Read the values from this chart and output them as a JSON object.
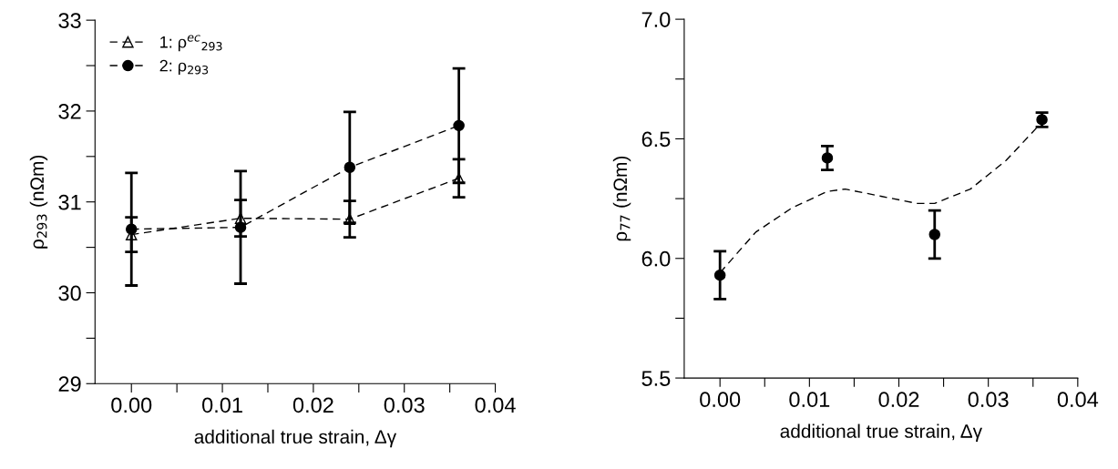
{
  "chart_data": [
    {
      "type": "line",
      "xlabel": "additional true strain, Δγ",
      "ylabel": "ρ$_{293}$ (nΩm)",
      "x": [
        0,
        0.012,
        0.024,
        0.036
      ],
      "series": [
        {
          "name": "1: ρ$^{ec}$$_{293}$",
          "color": "#000000",
          "marker": "triangle",
          "line_style": "dashed",
          "values": [
            30.64,
            30.82,
            30.81,
            31.26
          ],
          "errors": [
            0.19,
            0.2,
            0.2,
            0.21
          ]
        },
        {
          "name": "2: ρ$_{293}$",
          "color": "#000000",
          "marker": "circle",
          "line_style": "dashed",
          "values": [
            30.7,
            30.72,
            31.38,
            31.84
          ],
          "errors": [
            0.62,
            0.62,
            0.61,
            0.63
          ]
        }
      ],
      "xlim": [
        -0.004,
        0.04
      ],
      "xticks": [
        {
          "value": 0,
          "label": "0.00"
        },
        {
          "value": 0.005,
          "label": null
        },
        0.01,
        {
          "value": 0.015,
          "label": null
        },
        0.02,
        {
          "value": 0.025,
          "label": null
        },
        0.03,
        {
          "value": 0.035,
          "label": null
        },
        0.04
      ],
      "ylim": [
        29,
        33
      ],
      "yticks": [
        29,
        {
          "value": 29.5,
          "label": null
        },
        30,
        {
          "value": 30.5,
          "label": null
        },
        31,
        {
          "value": 31.5,
          "label": null
        },
        32,
        {
          "value": 32.5,
          "label": null
        },
        33
      ],
      "legend": "top left",
      "grid": false
    },
    {
      "type": "scatter",
      "xlabel": "additional true strain, Δγ",
      "ylabel": "ρ$_{77}$ (nΩm)",
      "series": [
        {
          "type": "scatter",
          "color": "#000000",
          "marker": "circle",
          "x": [
            0,
            0.012,
            0.024,
            0.036
          ],
          "values": [
            5.93,
            6.42,
            6.1,
            6.58
          ],
          "errors": [
            0.1,
            0.05,
            0.1,
            0.03
          ]
        },
        {
          "type": "line",
          "color": "#000000",
          "marker": "none",
          "line_style": "dashed",
          "x": [
            0,
            0.004,
            0.008,
            0.012,
            0.014,
            0.018,
            0.022,
            0.024,
            0.028,
            0.032,
            0.036
          ],
          "values": [
            5.94,
            6.11,
            6.21,
            6.28,
            6.29,
            6.26,
            6.23,
            6.23,
            6.29,
            6.41,
            6.57
          ]
        }
      ],
      "xlim": [
        -0.004,
        0.04
      ],
      "xticks": [
        {
          "value": 0,
          "label": "0.00"
        },
        {
          "value": 0.005,
          "label": null
        },
        0.01,
        {
          "value": 0.015,
          "label": null
        },
        0.02,
        {
          "value": 0.025,
          "label": null
        },
        0.03,
        {
          "value": 0.035,
          "label": null
        },
        0.04
      ],
      "ylim": [
        5.5,
        7.0
      ],
      "yticks": [
        5.5,
        {
          "value": 5.75,
          "label": null
        },
        {
          "value": 6.0,
          "label": "6.0"
        },
        {
          "value": 6.25,
          "label": null
        },
        6.5,
        {
          "value": 6.75,
          "label": null
        },
        {
          "value": 7.0,
          "label": "7.0"
        }
      ],
      "grid": false
    }
  ]
}
